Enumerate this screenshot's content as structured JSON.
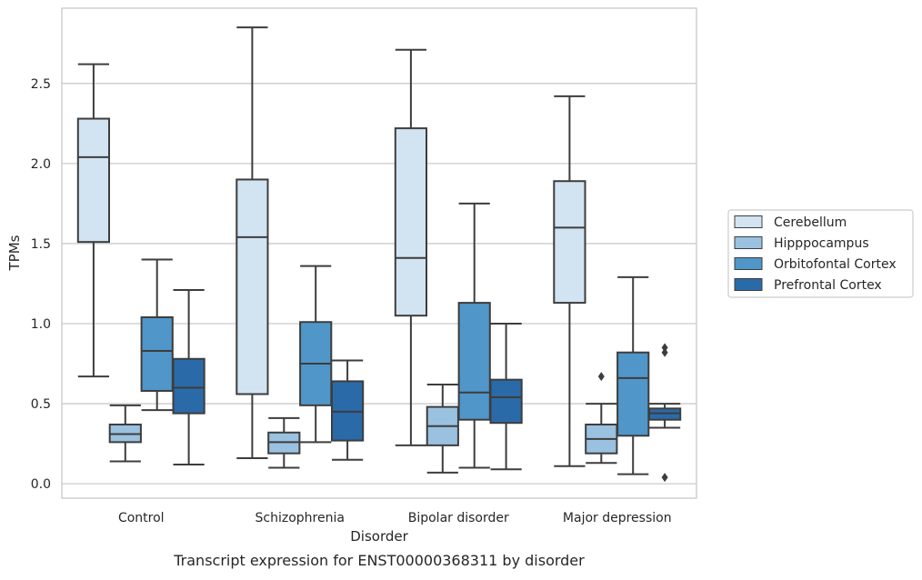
{
  "chart_data": {
    "type": "box",
    "title": "Transcript expression for ENST00000368311 by disorder",
    "xlabel": "Disorder",
    "ylabel": "TPMs",
    "ylim": [
      -0.09,
      2.97
    ],
    "yticks": [
      0.0,
      0.5,
      1.0,
      1.5,
      2.0,
      2.5
    ],
    "ytick_labels": [
      "0.0",
      "0.5",
      "1.0",
      "1.5",
      "2.0",
      "2.5"
    ],
    "grid": true,
    "legend_position": "right, outside plot area",
    "categories": [
      "Control",
      "Schizophrenia",
      "Bipolar disorder",
      "Major depression"
    ],
    "series": [
      {
        "name": "Cerebellum",
        "color": "#d2e3f2",
        "boxes": [
          {
            "whislo": 0.67,
            "q1": 1.51,
            "med": 2.04,
            "q3": 2.28,
            "whishi": 2.62,
            "fliers": []
          },
          {
            "whislo": 0.16,
            "q1": 0.56,
            "med": 1.54,
            "q3": 1.9,
            "whishi": 2.85,
            "fliers": []
          },
          {
            "whislo": 0.24,
            "q1": 1.05,
            "med": 1.41,
            "q3": 2.22,
            "whishi": 2.71,
            "fliers": []
          },
          {
            "whislo": 0.11,
            "q1": 1.13,
            "med": 1.6,
            "q3": 1.89,
            "whishi": 2.42,
            "fliers": []
          }
        ]
      },
      {
        "name": "Hipppocampus",
        "color": "#9ac2e0",
        "boxes": [
          {
            "whislo": 0.14,
            "q1": 0.26,
            "med": 0.31,
            "q3": 0.37,
            "whishi": 0.49,
            "fliers": []
          },
          {
            "whislo": 0.1,
            "q1": 0.19,
            "med": 0.26,
            "q3": 0.32,
            "whishi": 0.41,
            "fliers": []
          },
          {
            "whislo": 0.07,
            "q1": 0.24,
            "med": 0.36,
            "q3": 0.48,
            "whishi": 0.62,
            "fliers": []
          },
          {
            "whislo": 0.13,
            "q1": 0.19,
            "med": 0.28,
            "q3": 0.37,
            "whishi": 0.5,
            "fliers": [
              0.67
            ]
          }
        ]
      },
      {
        "name": "Orbitofontal Cortex",
        "color": "#5096c9",
        "boxes": [
          {
            "whislo": 0.46,
            "q1": 0.58,
            "med": 0.83,
            "q3": 1.04,
            "whishi": 1.4,
            "fliers": []
          },
          {
            "whislo": 0.26,
            "q1": 0.49,
            "med": 0.75,
            "q3": 1.01,
            "whishi": 1.36,
            "fliers": []
          },
          {
            "whislo": 0.1,
            "q1": 0.4,
            "med": 0.57,
            "q3": 1.13,
            "whishi": 1.75,
            "fliers": []
          },
          {
            "whislo": 0.06,
            "q1": 0.3,
            "med": 0.66,
            "q3": 0.82,
            "whishi": 1.29,
            "fliers": []
          }
        ]
      },
      {
        "name": "Prefrontal Cortex",
        "color": "#2b6aa8",
        "boxes": [
          {
            "whislo": 0.12,
            "q1": 0.44,
            "med": 0.6,
            "q3": 0.78,
            "whishi": 1.21,
            "fliers": []
          },
          {
            "whislo": 0.15,
            "q1": 0.27,
            "med": 0.45,
            "q3": 0.64,
            "whishi": 0.77,
            "fliers": []
          },
          {
            "whislo": 0.09,
            "q1": 0.38,
            "med": 0.54,
            "q3": 0.65,
            "whishi": 1.0,
            "fliers": []
          },
          {
            "whislo": 0.35,
            "q1": 0.4,
            "med": 0.44,
            "q3": 0.47,
            "whishi": 0.5,
            "fliers": [
              0.04,
              0.82,
              0.85
            ]
          }
        ]
      }
    ]
  }
}
